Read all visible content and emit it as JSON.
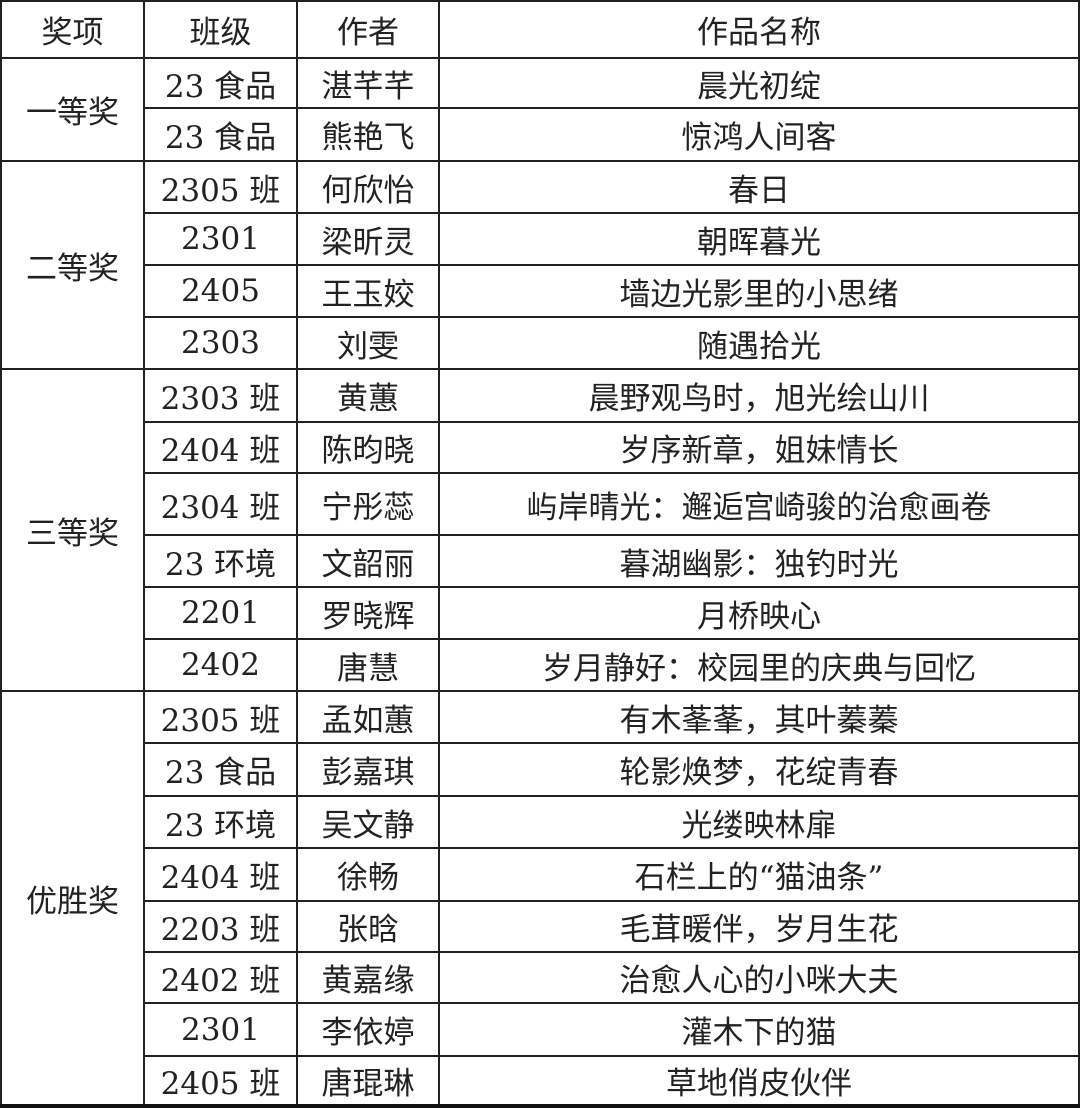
{
  "headers": [
    "奖项",
    "班级",
    "作者",
    "作品名称"
  ],
  "groups": [
    {
      "award": "一等奖",
      "rows": [
        {
          "class": "23 食品",
          "author": "湛芊芊",
          "title": "晨光初绽"
        },
        {
          "class": "23 食品",
          "author": "熊艳飞",
          "title": "惊鸿人间客"
        }
      ]
    },
    {
      "award": "二等奖",
      "rows": [
        {
          "class": "2305 班",
          "author": "何欣怡",
          "title": "春日"
        },
        {
          "class": "2301",
          "author": "梁昕灵",
          "title": "朝晖暮光"
        },
        {
          "class": "2405",
          "author": "王玉姣",
          "title": "墙边光影里的小思绪"
        },
        {
          "class": "2303",
          "author": "刘雯",
          "title": "随遇拾光"
        }
      ]
    },
    {
      "award": "三等奖",
      "rows": [
        {
          "class": "2303 班",
          "author": "黄蕙",
          "title": "晨野观鸟时，旭光绘山川"
        },
        {
          "class": "2404 班",
          "author": "陈昀晓",
          "title": "岁序新章，姐妹情长"
        },
        {
          "class": "2304 班",
          "author": "宁彤蕊",
          "title": "屿岸晴光：邂逅宫崎骏的治愈画卷"
        },
        {
          "class": "23 环境",
          "author": "文韶丽",
          "title": "暮湖幽影：独钓时光"
        },
        {
          "class": "2201",
          "author": "罗晓辉",
          "title": "月桥映心"
        },
        {
          "class": "2402",
          "author": "唐慧",
          "title": "岁月静好：校园里的庆典与回忆"
        }
      ]
    },
    {
      "award": "优胜奖",
      "rows": [
        {
          "class": "2305 班",
          "author": "孟如蕙",
          "title": "有木莑莑，其叶蓁蓁"
        },
        {
          "class": "23 食品",
          "author": "彭嘉琪",
          "title": "轮影焕梦，花绽青春"
        },
        {
          "class": "23 环境",
          "author": "吴文静",
          "title": "光缕映林扉"
        },
        {
          "class": "2404 班",
          "author": "徐畅",
          "title": "石栏上的“猫油条”"
        },
        {
          "class": "2203 班",
          "author": "张晗",
          "title": "毛茸暖伴，岁月生花"
        },
        {
          "class": "2402 班",
          "author": "黄嘉缘",
          "title": "治愈人心的小咪大夫"
        },
        {
          "class": "2301",
          "author": "李依婷",
          "title": "灌木下的猫"
        },
        {
          "class": "2405 班",
          "author": "唐琨琳",
          "title": "草地俏皮伙伴"
        }
      ]
    }
  ]
}
